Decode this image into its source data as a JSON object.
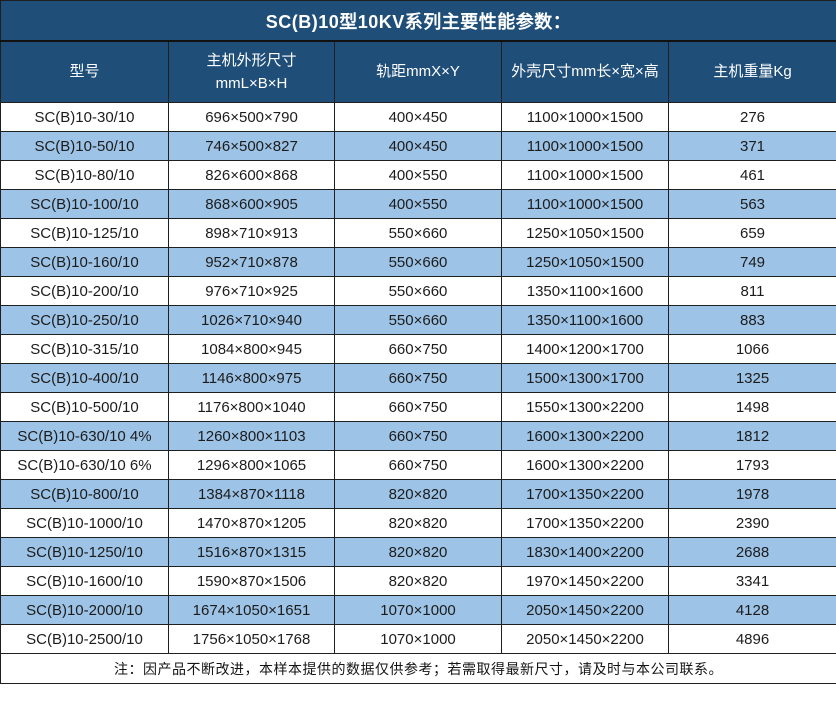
{
  "title": "SC(B)10型10KV系列主要性能参数：",
  "table": {
    "columns": [
      {
        "label": "型号"
      },
      {
        "label": "主机外形尺寸\nmmL×B×H"
      },
      {
        "label": "轨距mmX×Y"
      },
      {
        "label": "外壳尺寸mm长×宽×高"
      },
      {
        "label": "主机重量Kg"
      }
    ],
    "rows": [
      [
        "SC(B)10-30/10",
        "696×500×790",
        "400×450",
        "1100×1000×1500",
        "276"
      ],
      [
        "SC(B)10-50/10",
        "746×500×827",
        "400×450",
        "1100×1000×1500",
        "371"
      ],
      [
        "SC(B)10-80/10",
        "826×600×868",
        "400×550",
        "1100×1000×1500",
        "461"
      ],
      [
        "SC(B)10-100/10",
        "868×600×905",
        "400×550",
        "1100×1000×1500",
        "563"
      ],
      [
        "SC(B)10-125/10",
        "898×710×913",
        "550×660",
        "1250×1050×1500",
        "659"
      ],
      [
        "SC(B)10-160/10",
        "952×710×878",
        "550×660",
        "1250×1050×1500",
        "749"
      ],
      [
        "SC(B)10-200/10",
        "976×710×925",
        "550×660",
        "1350×1100×1600",
        "811"
      ],
      [
        "SC(B)10-250/10",
        "1026×710×940",
        "550×660",
        "1350×1100×1600",
        "883"
      ],
      [
        "SC(B)10-315/10",
        "1084×800×945",
        "660×750",
        "1400×1200×1700",
        "1066"
      ],
      [
        "SC(B)10-400/10",
        "1146×800×975",
        "660×750",
        "1500×1300×1700",
        "1325"
      ],
      [
        "SC(B)10-500/10",
        "1176×800×1040",
        "660×750",
        "1550×1300×2200",
        "1498"
      ],
      [
        "SC(B)10-630/10 4%",
        "1260×800×1103",
        "660×750",
        "1600×1300×2200",
        "1812"
      ],
      [
        "SC(B)10-630/10 6%",
        "1296×800×1065",
        "660×750",
        "1600×1300×2200",
        "1793"
      ],
      [
        "SC(B)10-800/10",
        "1384×870×1118",
        "820×820",
        "1700×1350×2200",
        "1978"
      ],
      [
        "SC(B)10-1000/10",
        "1470×870×1205",
        "820×820",
        "1700×1350×2200",
        "2390"
      ],
      [
        "SC(B)10-1250/10",
        "1516×870×1315",
        "820×820",
        "1830×1400×2200",
        "2688"
      ],
      [
        "SC(B)10-1600/10",
        "1590×870×1506",
        "820×820",
        "1970×1450×2200",
        "3341"
      ],
      [
        "SC(B)10-2000/10",
        "1674×1050×1651",
        "1070×1000",
        "2050×1450×2200",
        "4128"
      ],
      [
        "SC(B)10-2500/10",
        "1756×1050×1768",
        "1070×1000",
        "2050×1450×2200",
        "4896"
      ]
    ]
  },
  "footer_note": "注：因产品不断改进，本样本提供的数据仅供参考；若需取得最新尺寸，请及时与本公司联系。",
  "colors": {
    "header_bg": "#1f4e79",
    "row_alt_bg": "#9dc3e6",
    "row_bg": "#ffffff",
    "grid_border": "#1f1f1f",
    "header_text": "#ffffff",
    "body_text": "#1c1c1c"
  }
}
